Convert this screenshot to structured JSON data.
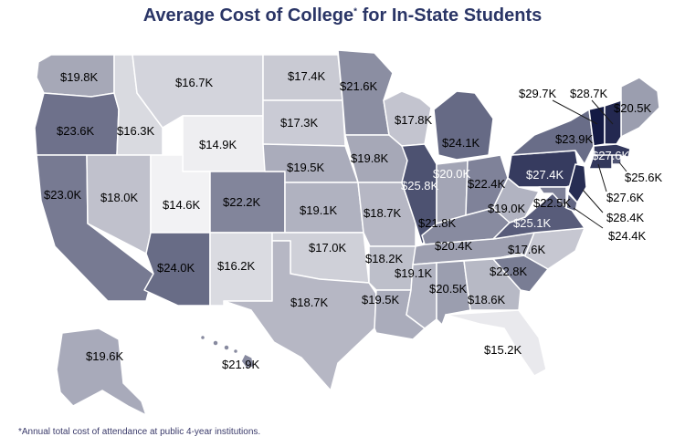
{
  "title": "Average Cost of College",
  "title_mark": "*",
  "title_rest": " for In-State Students",
  "footnote": "*Annual total cost of attendance at public 4-year institutions.",
  "colors": {
    "title": "#2a3566",
    "scale_low": "#f2f2f4",
    "scale_high": "#141a44"
  },
  "states": [
    {
      "id": "washington",
      "value": "$19.8K",
      "amount": 19.8
    },
    {
      "id": "oregon",
      "value": "$23.6K",
      "amount": 23.6
    },
    {
      "id": "california",
      "value": "$23.0K",
      "amount": 23.0
    },
    {
      "id": "idaho",
      "value": "$16.3K",
      "amount": 16.3
    },
    {
      "id": "nevada",
      "value": "$18.0K",
      "amount": 18.0
    },
    {
      "id": "montana",
      "value": "$16.7K",
      "amount": 16.7
    },
    {
      "id": "wyoming",
      "value": "$14.9K",
      "amount": 14.9
    },
    {
      "id": "utah",
      "value": "$14.6K",
      "amount": 14.6
    },
    {
      "id": "colorado",
      "value": "$22.2K",
      "amount": 22.2
    },
    {
      "id": "arizona",
      "value": "$24.0K",
      "amount": 24.0
    },
    {
      "id": "new-mexico",
      "value": "$16.2K",
      "amount": 16.2
    },
    {
      "id": "north-dakota",
      "value": "$17.4K",
      "amount": 17.4
    },
    {
      "id": "south-dakota",
      "value": "$17.3K",
      "amount": 17.3
    },
    {
      "id": "nebraska",
      "value": "$19.5K",
      "amount": 19.5
    },
    {
      "id": "kansas",
      "value": "$19.1K",
      "amount": 19.1
    },
    {
      "id": "oklahoma",
      "value": "$17.0K",
      "amount": 17.0
    },
    {
      "id": "texas",
      "value": "$18.7K",
      "amount": 18.7
    },
    {
      "id": "minnesota",
      "value": "$21.6K",
      "amount": 21.6
    },
    {
      "id": "iowa",
      "value": "$19.8K",
      "amount": 19.8
    },
    {
      "id": "missouri",
      "value": "$18.7K",
      "amount": 18.7
    },
    {
      "id": "arkansas",
      "value": "$18.2K",
      "amount": 18.2
    },
    {
      "id": "louisiana",
      "value": "$19.5K",
      "amount": 19.5
    },
    {
      "id": "wisconsin",
      "value": "$17.8K",
      "amount": 17.8
    },
    {
      "id": "michigan",
      "value": "$24.1K",
      "amount": 24.1
    },
    {
      "id": "illinois",
      "value": "$25.8K",
      "amount": 25.8
    },
    {
      "id": "indiana",
      "value": "$20.0K",
      "amount": 20.0
    },
    {
      "id": "ohio",
      "value": "$22.4K",
      "amount": 22.4
    },
    {
      "id": "kentucky",
      "value": "$21.8K",
      "amount": 21.8
    },
    {
      "id": "tennessee",
      "value": "$20.4K",
      "amount": 20.4
    },
    {
      "id": "mississippi",
      "value": "$19.1K",
      "amount": 19.1
    },
    {
      "id": "alabama",
      "value": "$20.5K",
      "amount": 20.5
    },
    {
      "id": "georgia",
      "value": "$18.6K",
      "amount": 18.6
    },
    {
      "id": "florida",
      "value": "$15.2K",
      "amount": 15.2
    },
    {
      "id": "south-carolina",
      "value": "$22.8K",
      "amount": 22.8
    },
    {
      "id": "north-carolina",
      "value": "$17.6K",
      "amount": 17.6
    },
    {
      "id": "virginia",
      "value": "$25.1K",
      "amount": 25.1
    },
    {
      "id": "west-virginia",
      "value": "$19.0K",
      "amount": 19.0
    },
    {
      "id": "pennsylvania",
      "value": "$27.4K",
      "amount": 27.4
    },
    {
      "id": "new-york",
      "value": "$23.9K",
      "amount": 23.9
    },
    {
      "id": "maine",
      "value": "$20.5K",
      "amount": 20.5
    },
    {
      "id": "vermont",
      "value": "$29.7K",
      "amount": 29.7
    },
    {
      "id": "new-hampshire",
      "value": "$28.7K",
      "amount": 28.7
    },
    {
      "id": "massachusetts",
      "value": "$27.6K",
      "amount": 27.6
    },
    {
      "id": "rhode-island",
      "value": "$25.6K",
      "amount": 25.6
    },
    {
      "id": "connecticut",
      "value": "$27.6K",
      "amount": 27.6
    },
    {
      "id": "new-jersey",
      "value": "$28.4K",
      "amount": 28.4
    },
    {
      "id": "delaware",
      "value": "$24.4K",
      "amount": 24.4
    },
    {
      "id": "maryland",
      "value": "$22.5K",
      "amount": 22.5
    },
    {
      "id": "alaska",
      "value": "$19.6K",
      "amount": 19.6
    },
    {
      "id": "hawaii",
      "value": "$21.9K",
      "amount": 21.9
    }
  ]
}
